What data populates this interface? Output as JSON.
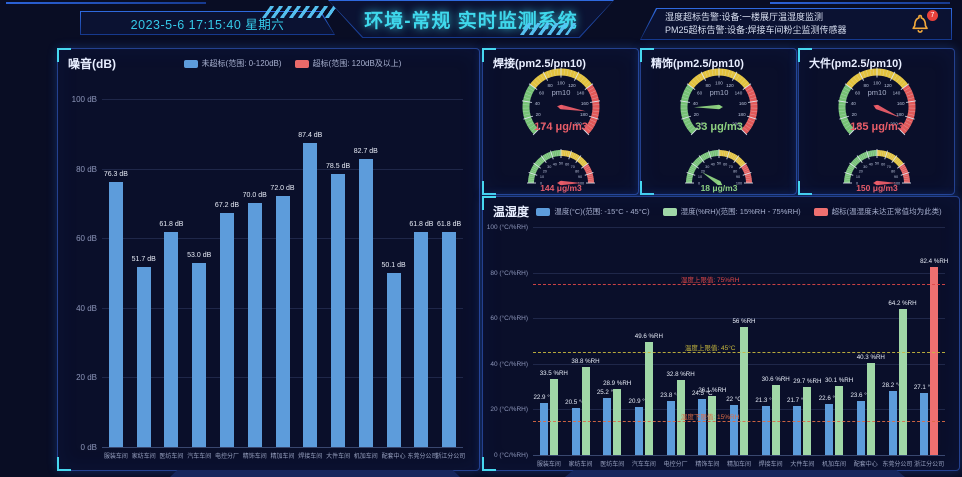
{
  "header": {
    "datetime": "2023-5-6 17:15:40 星期六",
    "title": "环境-常规 实时监测系统",
    "alerts": [
      "湿度超标告警:设备:一楼展厅温湿度监测",
      "PM25超标告警:设备:焊接车间粉尘监测传感器"
    ],
    "bell_badge": "7"
  },
  "colors": {
    "accent_cyan": "#3fd8ec",
    "bar_blue": "#5d9cdb",
    "bar_green": "#a0d7a7",
    "bar_red": "#ee7070",
    "status_red": "#ea5d68",
    "status_green": "#8fd381"
  },
  "chart_data": [
    {
      "id": "noise",
      "type": "bar",
      "title": "噪音(dB)",
      "legend": [
        {
          "label": "未超标(范围: 0-120dB)",
          "color": "#5d9cdb"
        },
        {
          "label": "超标(范围: 120dB及以上)",
          "color": "#e96a6a"
        }
      ],
      "categories": [
        "服装车间",
        "家纺车间",
        "医纺车间",
        "汽车车间",
        "电控分厂",
        "精饰车间",
        "精加车间",
        "焊接车间",
        "大件车间",
        "机加车间",
        "配套中心",
        "东莞分公司",
        "浙江分公司"
      ],
      "values": [
        "76.3",
        "51.7",
        "61.8",
        "53.0",
        "67.2",
        "70.0",
        "72.0",
        "87.4",
        "78.5",
        "82.7",
        "50.1",
        "61.8",
        "61.8"
      ],
      "value_suffix": " dB",
      "ylim": [
        0,
        100
      ],
      "ytick_step": 20,
      "ytick_suffix": " dB",
      "bar_color": "#5d9cdb"
    },
    {
      "id": "welding-gauge",
      "type": "gauge",
      "title": "焊接(pm2.5/pm10)",
      "band_colors": {
        "green": "#76c275",
        "yellow": "#e3c33e",
        "red": "#e25959"
      },
      "main": {
        "label": "pm10",
        "value": 174,
        "min": 0,
        "max": 200,
        "tick_step": 20,
        "band_stops": [
          0.3,
          0.7
        ],
        "display": "174 μg/m3",
        "status_color": "#ea5d68"
      },
      "sub": {
        "value": 144,
        "min": 0,
        "max": 100,
        "tick_step": 10,
        "band_stops": [
          0.5,
          0.8
        ],
        "display": "144 μg/m3",
        "status_color": "#ea5d68"
      }
    },
    {
      "id": "finishing-gauge",
      "type": "gauge",
      "title": "精饰(pm2.5/pm10)",
      "band_colors": {
        "green": "#76c275",
        "yellow": "#e3c33e",
        "red": "#e25959"
      },
      "main": {
        "label": "pm10",
        "value": 33,
        "min": 0,
        "max": 200,
        "tick_step": 20,
        "band_stops": [
          0.3,
          0.7
        ],
        "display": "33 μg/m3",
        "status_color": "#8fd381"
      },
      "sub": {
        "value": 18,
        "min": 0,
        "max": 100,
        "tick_step": 10,
        "band_stops": [
          0.5,
          0.8
        ],
        "display": "18 μg/m3",
        "status_color": "#8fd381"
      }
    },
    {
      "id": "large-parts-gauge",
      "type": "gauge",
      "title": "大件(pm2.5/pm10)",
      "band_colors": {
        "green": "#76c275",
        "yellow": "#e3c33e",
        "red": "#e25959"
      },
      "main": {
        "label": "pm10",
        "value": 185,
        "min": 0,
        "max": 200,
        "tick_step": 20,
        "band_stops": [
          0.3,
          0.7
        ],
        "display": "185 μg/m3",
        "status_color": "#ea5d68"
      },
      "sub": {
        "value": 150,
        "min": 0,
        "max": 100,
        "tick_step": 10,
        "band_stops": [
          0.5,
          0.8
        ],
        "display": "150 μg/m3",
        "status_color": "#ea5d68"
      }
    },
    {
      "id": "temp-humidity",
      "type": "grouped-bar",
      "title": "温湿度",
      "legend": [
        {
          "label": "温度(°C)(范围: -15°C - 45°C)",
          "color": "#5d9cdb"
        },
        {
          "label": "湿度(%RH)(范围: 15%RH - 75%RH)",
          "color": "#a0d7a7"
        },
        {
          "label": "超标(温湿度未达正常值均为此类)",
          "color": "#ee7070"
        }
      ],
      "categories": [
        "服装车间",
        "家纺车间",
        "医纺车间",
        "汽车车间",
        "电控分厂",
        "精饰车间",
        "精加车间",
        "焊接车间",
        "大件车间",
        "机加车间",
        "配套中心",
        "东莞分公司",
        "浙江分公司"
      ],
      "series": [
        {
          "name": "温度",
          "unit_suffix": " °C",
          "color": "#5d9cdb",
          "values": [
            "22.9",
            "20.5",
            "25.2",
            "20.9",
            "23.8",
            "24.5",
            "22",
            "21.3",
            "21.7",
            "22.6",
            "23.6",
            "28.2",
            "27.1"
          ]
        },
        {
          "name": "湿度",
          "unit_suffix": " %RH",
          "color": "#a0d7a7",
          "over_color": "#ee7070",
          "over_threshold": 75,
          "values": [
            "33.5",
            "38.8",
            "28.9",
            "49.6",
            "32.8",
            "26.1",
            "56",
            "30.6",
            "29.7",
            "30.1",
            "40.3",
            "64.2",
            "82.4"
          ]
        }
      ],
      "thresholds": [
        {
          "value": 75,
          "label": "湿度上限值: 75%RH",
          "color": "#e04848"
        },
        {
          "value": 45,
          "label": "温度上限值: 45°C",
          "color": "#c8b93e"
        },
        {
          "value": 15,
          "label": "湿度下限值: 15%RH",
          "color": "#dd6b45"
        }
      ],
      "ylim": [
        0,
        100
      ],
      "ytick_step": 20,
      "ytick_suffix": " (°C/%RH)"
    }
  ]
}
